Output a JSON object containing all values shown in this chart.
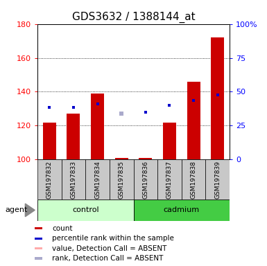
{
  "title": "GDS3632 / 1388144_at",
  "samples": [
    "GSM197832",
    "GSM197833",
    "GSM197834",
    "GSM197835",
    "GSM197836",
    "GSM197837",
    "GSM197838",
    "GSM197839"
  ],
  "bar_color": "#CC0000",
  "dot_color_present": "#0000CC",
  "dot_color_absent_rank": "#AAAACC",
  "dot_color_absent_val": "#FFAAAA",
  "ylim_left": [
    100,
    180
  ],
  "ylim_right": [
    0,
    100
  ],
  "yticks_left": [
    100,
    120,
    140,
    160,
    180
  ],
  "yticks_right": [
    0,
    25,
    50,
    75,
    100
  ],
  "yticklabels_right": [
    "0",
    "25",
    "50",
    "75",
    "100%"
  ],
  "count_values": [
    122,
    127,
    139,
    101,
    101,
    122,
    146,
    172
  ],
  "rank_values": [
    131,
    131,
    133,
    null,
    128,
    132,
    135,
    138
  ],
  "absent_rank_idx": [
    3
  ],
  "absent_rank_values": [
    127
  ],
  "absent_val_idx": [],
  "absent_val_values": [],
  "ctrl_color_light": "#CCFFCC",
  "cad_color": "#44CC44",
  "sample_bg": "#C8C8C8",
  "title_fontsize": 11,
  "tick_fontsize": 8,
  "legend_fontsize": 7.5,
  "sample_fontsize": 6.5,
  "group_fontsize": 8,
  "agent_fontsize": 8
}
